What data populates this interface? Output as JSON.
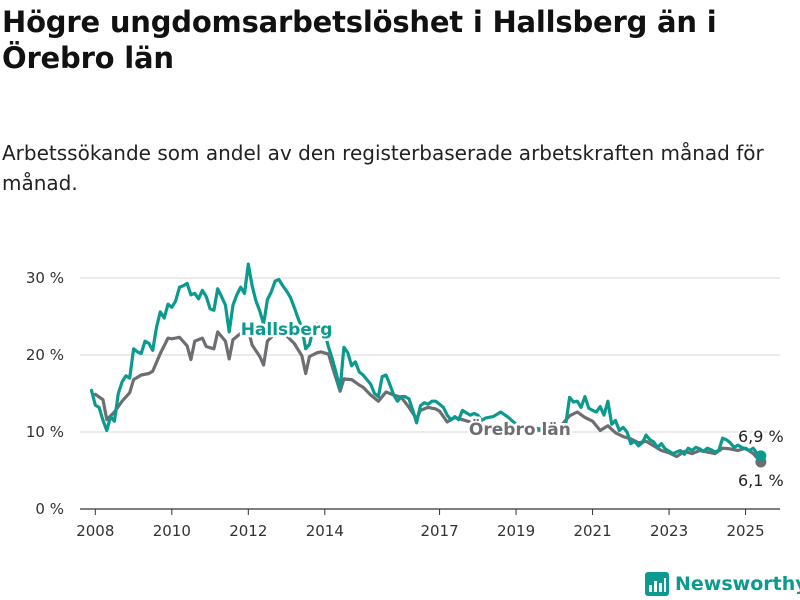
{
  "title": "Högre ungdomsarbetslöshet i Hallsberg än i Örebro län",
  "subtitle": "Arbetssökande som andel av den registerbaserade arbetskraften månad för månad.",
  "brand": {
    "name": "Newsworthy",
    "icon": "newsworthy-logo-icon"
  },
  "colors": {
    "hallsberg": "#0c9a8f",
    "orebro": "#6e6d72",
    "grid": "#d7d7d7",
    "axis": "#333333"
  },
  "chart_data": {
    "type": "line",
    "x_unit": "year",
    "xlim": [
      2007.6,
      2025.9
    ],
    "ylim": [
      0,
      30
    ],
    "grid": "horizontal",
    "y_ticks": [
      {
        "value": 0,
        "label": "0 %"
      },
      {
        "value": 10,
        "label": "10 %"
      },
      {
        "value": 20,
        "label": "20 %"
      },
      {
        "value": 30,
        "label": "30 %"
      }
    ],
    "x_ticks": [
      {
        "value": 2008,
        "label": "2008"
      },
      {
        "value": 2010,
        "label": "2010"
      },
      {
        "value": 2012,
        "label": "2012"
      },
      {
        "value": 2014,
        "label": "2014"
      },
      {
        "value": 2017,
        "label": "2017"
      },
      {
        "value": 2019,
        "label": "2019"
      },
      {
        "value": 2021,
        "label": "2021"
      },
      {
        "value": 2023,
        "label": "2023"
      },
      {
        "value": 2025,
        "label": "2025"
      }
    ],
    "series": [
      {
        "name": "Örebro län",
        "color": "#6e6d72",
        "end_label": "6,1 %",
        "points": [
          [
            2008.0,
            14.9
          ],
          [
            2008.2,
            14.2
          ],
          [
            2008.3,
            11.6
          ],
          [
            2008.5,
            12.6
          ],
          [
            2008.7,
            14.0
          ],
          [
            2008.9,
            15.1
          ],
          [
            2009.0,
            16.8
          ],
          [
            2009.2,
            17.4
          ],
          [
            2009.4,
            17.6
          ],
          [
            2009.5,
            17.9
          ],
          [
            2009.7,
            20.2
          ],
          [
            2009.9,
            22.2
          ],
          [
            2010.0,
            22.1
          ],
          [
            2010.2,
            22.3
          ],
          [
            2010.4,
            21.2
          ],
          [
            2010.5,
            19.4
          ],
          [
            2010.6,
            21.8
          ],
          [
            2010.8,
            22.2
          ],
          [
            2010.9,
            21.1
          ],
          [
            2011.1,
            20.8
          ],
          [
            2011.2,
            23.0
          ],
          [
            2011.4,
            21.8
          ],
          [
            2011.5,
            19.5
          ],
          [
            2011.6,
            22.0
          ],
          [
            2011.8,
            22.8
          ],
          [
            2011.9,
            22.7
          ],
          [
            2012.0,
            23.3
          ],
          [
            2012.1,
            21.3
          ],
          [
            2012.3,
            19.8
          ],
          [
            2012.4,
            18.7
          ],
          [
            2012.5,
            21.8
          ],
          [
            2012.7,
            22.8
          ],
          [
            2012.9,
            23.0
          ],
          [
            2013.0,
            22.5
          ],
          [
            2013.2,
            21.5
          ],
          [
            2013.4,
            19.9
          ],
          [
            2013.5,
            17.6
          ],
          [
            2013.6,
            19.8
          ],
          [
            2013.8,
            20.3
          ],
          [
            2013.9,
            20.4
          ],
          [
            2014.1,
            20.1
          ],
          [
            2014.2,
            18.4
          ],
          [
            2014.4,
            15.3
          ],
          [
            2014.5,
            16.9
          ],
          [
            2014.7,
            16.8
          ],
          [
            2014.9,
            16.1
          ],
          [
            2015.0,
            15.8
          ],
          [
            2015.2,
            14.8
          ],
          [
            2015.4,
            14.0
          ],
          [
            2015.6,
            15.2
          ],
          [
            2015.8,
            14.8
          ],
          [
            2016.0,
            14.5
          ],
          [
            2016.2,
            13.2
          ],
          [
            2016.4,
            11.7
          ],
          [
            2016.5,
            12.8
          ],
          [
            2016.7,
            13.2
          ],
          [
            2016.9,
            13.0
          ],
          [
            2017.0,
            12.7
          ],
          [
            2017.2,
            11.3
          ],
          [
            2017.4,
            11.9
          ],
          [
            2017.6,
            11.6
          ],
          [
            2017.8,
            11.3
          ],
          [
            2018.0,
            10.8
          ],
          [
            2018.3,
            10.5
          ],
          [
            2018.6,
            10.7
          ],
          [
            2018.9,
            10.4
          ],
          [
            2019.2,
            10.6
          ],
          [
            2019.5,
            10.3
          ],
          [
            2019.8,
            10.1
          ],
          [
            2020.1,
            10.4
          ],
          [
            2020.4,
            12.1
          ],
          [
            2020.6,
            12.6
          ],
          [
            2020.8,
            11.9
          ],
          [
            2021.0,
            11.4
          ],
          [
            2021.2,
            10.2
          ],
          [
            2021.4,
            10.8
          ],
          [
            2021.6,
            9.9
          ],
          [
            2021.8,
            9.4
          ],
          [
            2022.0,
            9.1
          ],
          [
            2022.2,
            8.6
          ],
          [
            2022.4,
            8.8
          ],
          [
            2022.6,
            8.2
          ],
          [
            2022.8,
            7.6
          ],
          [
            2023.0,
            7.3
          ],
          [
            2023.2,
            6.8
          ],
          [
            2023.4,
            7.5
          ],
          [
            2023.6,
            7.2
          ],
          [
            2023.8,
            7.6
          ],
          [
            2024.0,
            7.4
          ],
          [
            2024.2,
            7.2
          ],
          [
            2024.4,
            7.9
          ],
          [
            2024.6,
            7.8
          ],
          [
            2024.8,
            7.6
          ],
          [
            2025.0,
            7.9
          ],
          [
            2025.2,
            7.2
          ],
          [
            2025.4,
            6.1
          ]
        ]
      },
      {
        "name": "Hallsberg",
        "color": "#0c9a8f",
        "end_label": "6,9 %",
        "points": [
          [
            2007.9,
            15.4
          ],
          [
            2008.0,
            13.5
          ],
          [
            2008.1,
            13.2
          ],
          [
            2008.2,
            11.5
          ],
          [
            2008.3,
            10.2
          ],
          [
            2008.4,
            12.0
          ],
          [
            2008.5,
            11.4
          ],
          [
            2008.6,
            15.0
          ],
          [
            2008.7,
            16.5
          ],
          [
            2008.8,
            17.3
          ],
          [
            2008.9,
            17.0
          ],
          [
            2009.0,
            20.8
          ],
          [
            2009.1,
            20.4
          ],
          [
            2009.2,
            20.2
          ],
          [
            2009.3,
            21.8
          ],
          [
            2009.4,
            21.5
          ],
          [
            2009.5,
            20.6
          ],
          [
            2009.6,
            23.6
          ],
          [
            2009.7,
            25.6
          ],
          [
            2009.8,
            24.8
          ],
          [
            2009.9,
            26.6
          ],
          [
            2010.0,
            26.2
          ],
          [
            2010.1,
            27.0
          ],
          [
            2010.2,
            28.8
          ],
          [
            2010.3,
            29.0
          ],
          [
            2010.4,
            29.3
          ],
          [
            2010.5,
            27.8
          ],
          [
            2010.6,
            28.0
          ],
          [
            2010.7,
            27.3
          ],
          [
            2010.8,
            28.4
          ],
          [
            2010.9,
            27.6
          ],
          [
            2011.0,
            26.0
          ],
          [
            2011.1,
            25.8
          ],
          [
            2011.2,
            28.6
          ],
          [
            2011.3,
            27.6
          ],
          [
            2011.4,
            26.5
          ],
          [
            2011.5,
            23.0
          ],
          [
            2011.6,
            26.5
          ],
          [
            2011.7,
            27.8
          ],
          [
            2011.8,
            28.8
          ],
          [
            2011.9,
            28.0
          ],
          [
            2012.0,
            31.8
          ],
          [
            2012.1,
            29.0
          ],
          [
            2012.2,
            27.0
          ],
          [
            2012.3,
            25.7
          ],
          [
            2012.4,
            24.0
          ],
          [
            2012.5,
            27.2
          ],
          [
            2012.6,
            28.2
          ],
          [
            2012.7,
            29.6
          ],
          [
            2012.8,
            29.8
          ],
          [
            2012.9,
            29.0
          ],
          [
            2013.0,
            28.3
          ],
          [
            2013.1,
            27.5
          ],
          [
            2013.2,
            26.2
          ],
          [
            2013.3,
            24.8
          ],
          [
            2013.4,
            23.5
          ],
          [
            2013.5,
            20.8
          ],
          [
            2013.6,
            21.4
          ],
          [
            2013.7,
            23.4
          ],
          [
            2013.8,
            24.0
          ],
          [
            2013.9,
            23.6
          ],
          [
            2014.0,
            22.8
          ],
          [
            2014.1,
            21.0
          ],
          [
            2014.2,
            19.4
          ],
          [
            2014.3,
            17.6
          ],
          [
            2014.4,
            15.6
          ],
          [
            2014.5,
            21.0
          ],
          [
            2014.6,
            20.3
          ],
          [
            2014.7,
            18.6
          ],
          [
            2014.8,
            19.1
          ],
          [
            2014.9,
            17.8
          ],
          [
            2015.0,
            17.4
          ],
          [
            2015.1,
            16.8
          ],
          [
            2015.2,
            16.2
          ],
          [
            2015.3,
            15.0
          ],
          [
            2015.4,
            14.6
          ],
          [
            2015.5,
            17.2
          ],
          [
            2015.6,
            17.4
          ],
          [
            2015.7,
            16.2
          ],
          [
            2015.8,
            14.8
          ],
          [
            2015.9,
            14.0
          ],
          [
            2016.0,
            14.6
          ],
          [
            2016.1,
            14.6
          ],
          [
            2016.2,
            14.3
          ],
          [
            2016.3,
            12.8
          ],
          [
            2016.4,
            11.2
          ],
          [
            2016.5,
            13.4
          ],
          [
            2016.6,
            13.8
          ],
          [
            2016.7,
            13.6
          ],
          [
            2016.8,
            14.0
          ],
          [
            2016.9,
            14.0
          ],
          [
            2017.0,
            13.6
          ],
          [
            2017.1,
            13.2
          ],
          [
            2017.2,
            12.2
          ],
          [
            2017.3,
            11.6
          ],
          [
            2017.4,
            12.0
          ],
          [
            2017.5,
            11.6
          ],
          [
            2017.6,
            12.8
          ],
          [
            2017.7,
            12.5
          ],
          [
            2017.8,
            12.2
          ],
          [
            2017.9,
            12.4
          ],
          [
            2018.0,
            12.2
          ],
          [
            2018.1,
            11.5
          ],
          [
            2018.2,
            11.8
          ],
          [
            2018.4,
            12.0
          ],
          [
            2018.6,
            12.6
          ],
          [
            2018.8,
            11.9
          ],
          [
            2019.0,
            11.0
          ],
          [
            2019.2,
            10.8
          ],
          [
            2019.4,
            10.5
          ],
          [
            2019.6,
            10.4
          ],
          [
            2019.8,
            10.6
          ],
          [
            2020.0,
            10.9
          ],
          [
            2020.1,
            10.6
          ],
          [
            2020.2,
            10.9
          ],
          [
            2020.3,
            11.1
          ],
          [
            2020.4,
            14.5
          ],
          [
            2020.5,
            13.9
          ],
          [
            2020.6,
            14.0
          ],
          [
            2020.7,
            13.2
          ],
          [
            2020.8,
            14.6
          ],
          [
            2020.9,
            13.1
          ],
          [
            2021.0,
            12.8
          ],
          [
            2021.1,
            12.6
          ],
          [
            2021.2,
            13.3
          ],
          [
            2021.3,
            12.2
          ],
          [
            2021.4,
            14.0
          ],
          [
            2021.5,
            11.0
          ],
          [
            2021.6,
            11.5
          ],
          [
            2021.7,
            10.2
          ],
          [
            2021.8,
            10.6
          ],
          [
            2021.9,
            10.0
          ],
          [
            2022.0,
            8.5
          ],
          [
            2022.1,
            8.8
          ],
          [
            2022.2,
            8.2
          ],
          [
            2022.3,
            8.6
          ],
          [
            2022.4,
            9.6
          ],
          [
            2022.5,
            9.0
          ],
          [
            2022.6,
            8.7
          ],
          [
            2022.7,
            8.0
          ],
          [
            2022.8,
            8.5
          ],
          [
            2022.9,
            7.8
          ],
          [
            2023.0,
            7.5
          ],
          [
            2023.1,
            7.2
          ],
          [
            2023.2,
            7.4
          ],
          [
            2023.3,
            7.6
          ],
          [
            2023.4,
            7.1
          ],
          [
            2023.5,
            7.9
          ],
          [
            2023.6,
            7.6
          ],
          [
            2023.7,
            8.0
          ],
          [
            2023.8,
            7.8
          ],
          [
            2023.9,
            7.5
          ],
          [
            2024.0,
            7.9
          ],
          [
            2024.1,
            7.7
          ],
          [
            2024.2,
            7.4
          ],
          [
            2024.3,
            7.6
          ],
          [
            2024.4,
            9.2
          ],
          [
            2024.5,
            9.0
          ],
          [
            2024.6,
            8.6
          ],
          [
            2024.7,
            8.0
          ],
          [
            2024.8,
            8.3
          ],
          [
            2024.9,
            8.0
          ],
          [
            2025.0,
            7.8
          ],
          [
            2025.1,
            7.6
          ],
          [
            2025.2,
            7.9
          ],
          [
            2025.3,
            7.2
          ],
          [
            2025.4,
            6.9
          ]
        ]
      }
    ],
    "annotations": [
      {
        "series": "Hallsberg",
        "text": "Hallsberg",
        "at_x": 2013.0,
        "at_y": 22.6
      },
      {
        "series": "Örebro län",
        "text": "Örebro län",
        "at_x": 2019.1,
        "at_y": 9.6
      }
    ]
  }
}
